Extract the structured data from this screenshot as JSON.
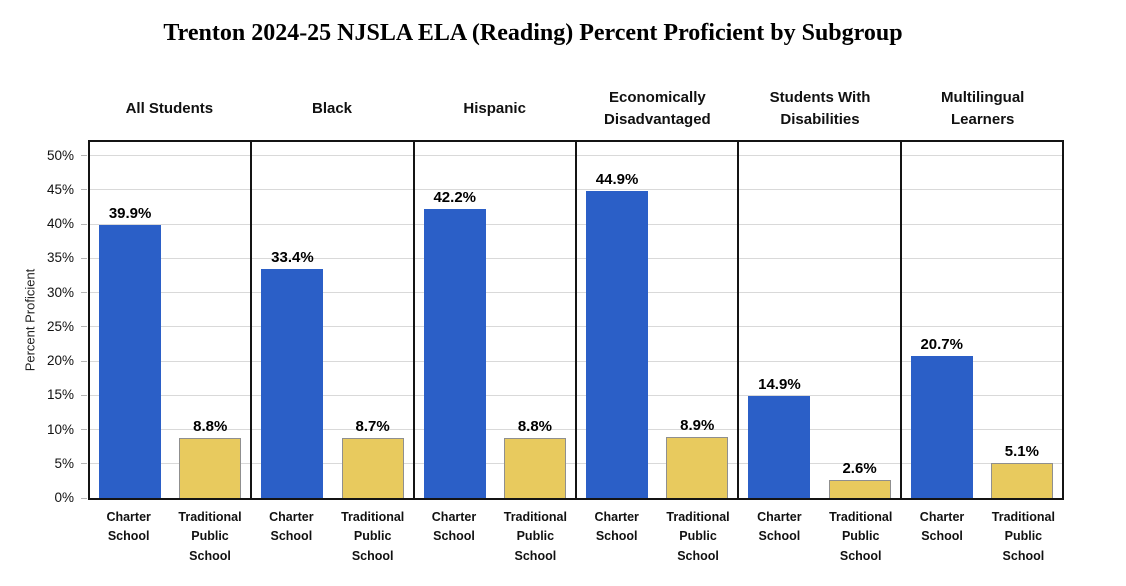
{
  "chart_data": {
    "type": "bar",
    "title": "Trenton 2024-25 NJSLA ELA (Reading) Percent Proficient by Subgroup",
    "xlabel": "",
    "ylabel": "Percent Proficient",
    "ylim": [
      0,
      52
    ],
    "grid": true,
    "legend_position": "none (series named under each bar)",
    "categories": [
      "All Students",
      "Black",
      "Hispanic",
      "Economically Disadvantaged",
      "Students With Disabilities",
      "Multilingual Learners"
    ],
    "series": [
      {
        "name": "Charter School",
        "color": "#2B5FC7",
        "values": [
          39.9,
          33.4,
          42.2,
          44.9,
          14.9,
          20.7
        ],
        "labels": [
          "39.9%",
          "33.4%",
          "42.2%",
          "44.9%",
          "14.9%",
          "20.7%"
        ]
      },
      {
        "name": "Traditional Public School",
        "color": "#E8CA5E",
        "border_color": "#8F8F8F",
        "values": [
          8.8,
          8.7,
          8.8,
          8.9,
          2.6,
          5.1
        ],
        "labels": [
          "8.8%",
          "8.7%",
          "8.8%",
          "8.9%",
          "2.6%",
          "5.1%"
        ]
      }
    ],
    "yticks": [
      {
        "value": 0,
        "label": "0%"
      },
      {
        "value": 5,
        "label": "5%"
      },
      {
        "value": 10,
        "label": "10%"
      },
      {
        "value": 15,
        "label": "15%"
      },
      {
        "value": 20,
        "label": "20%"
      },
      {
        "value": 25,
        "label": "25%"
      },
      {
        "value": 30,
        "label": "30%"
      },
      {
        "value": 35,
        "label": "35%"
      },
      {
        "value": 40,
        "label": "40%"
      },
      {
        "value": 45,
        "label": "45%"
      },
      {
        "value": 50,
        "label": "50%"
      }
    ],
    "colors": {
      "grid": "#D9D9D9",
      "panel_border": "#141414",
      "background": "#FFFFFF",
      "text": "#111111"
    }
  }
}
